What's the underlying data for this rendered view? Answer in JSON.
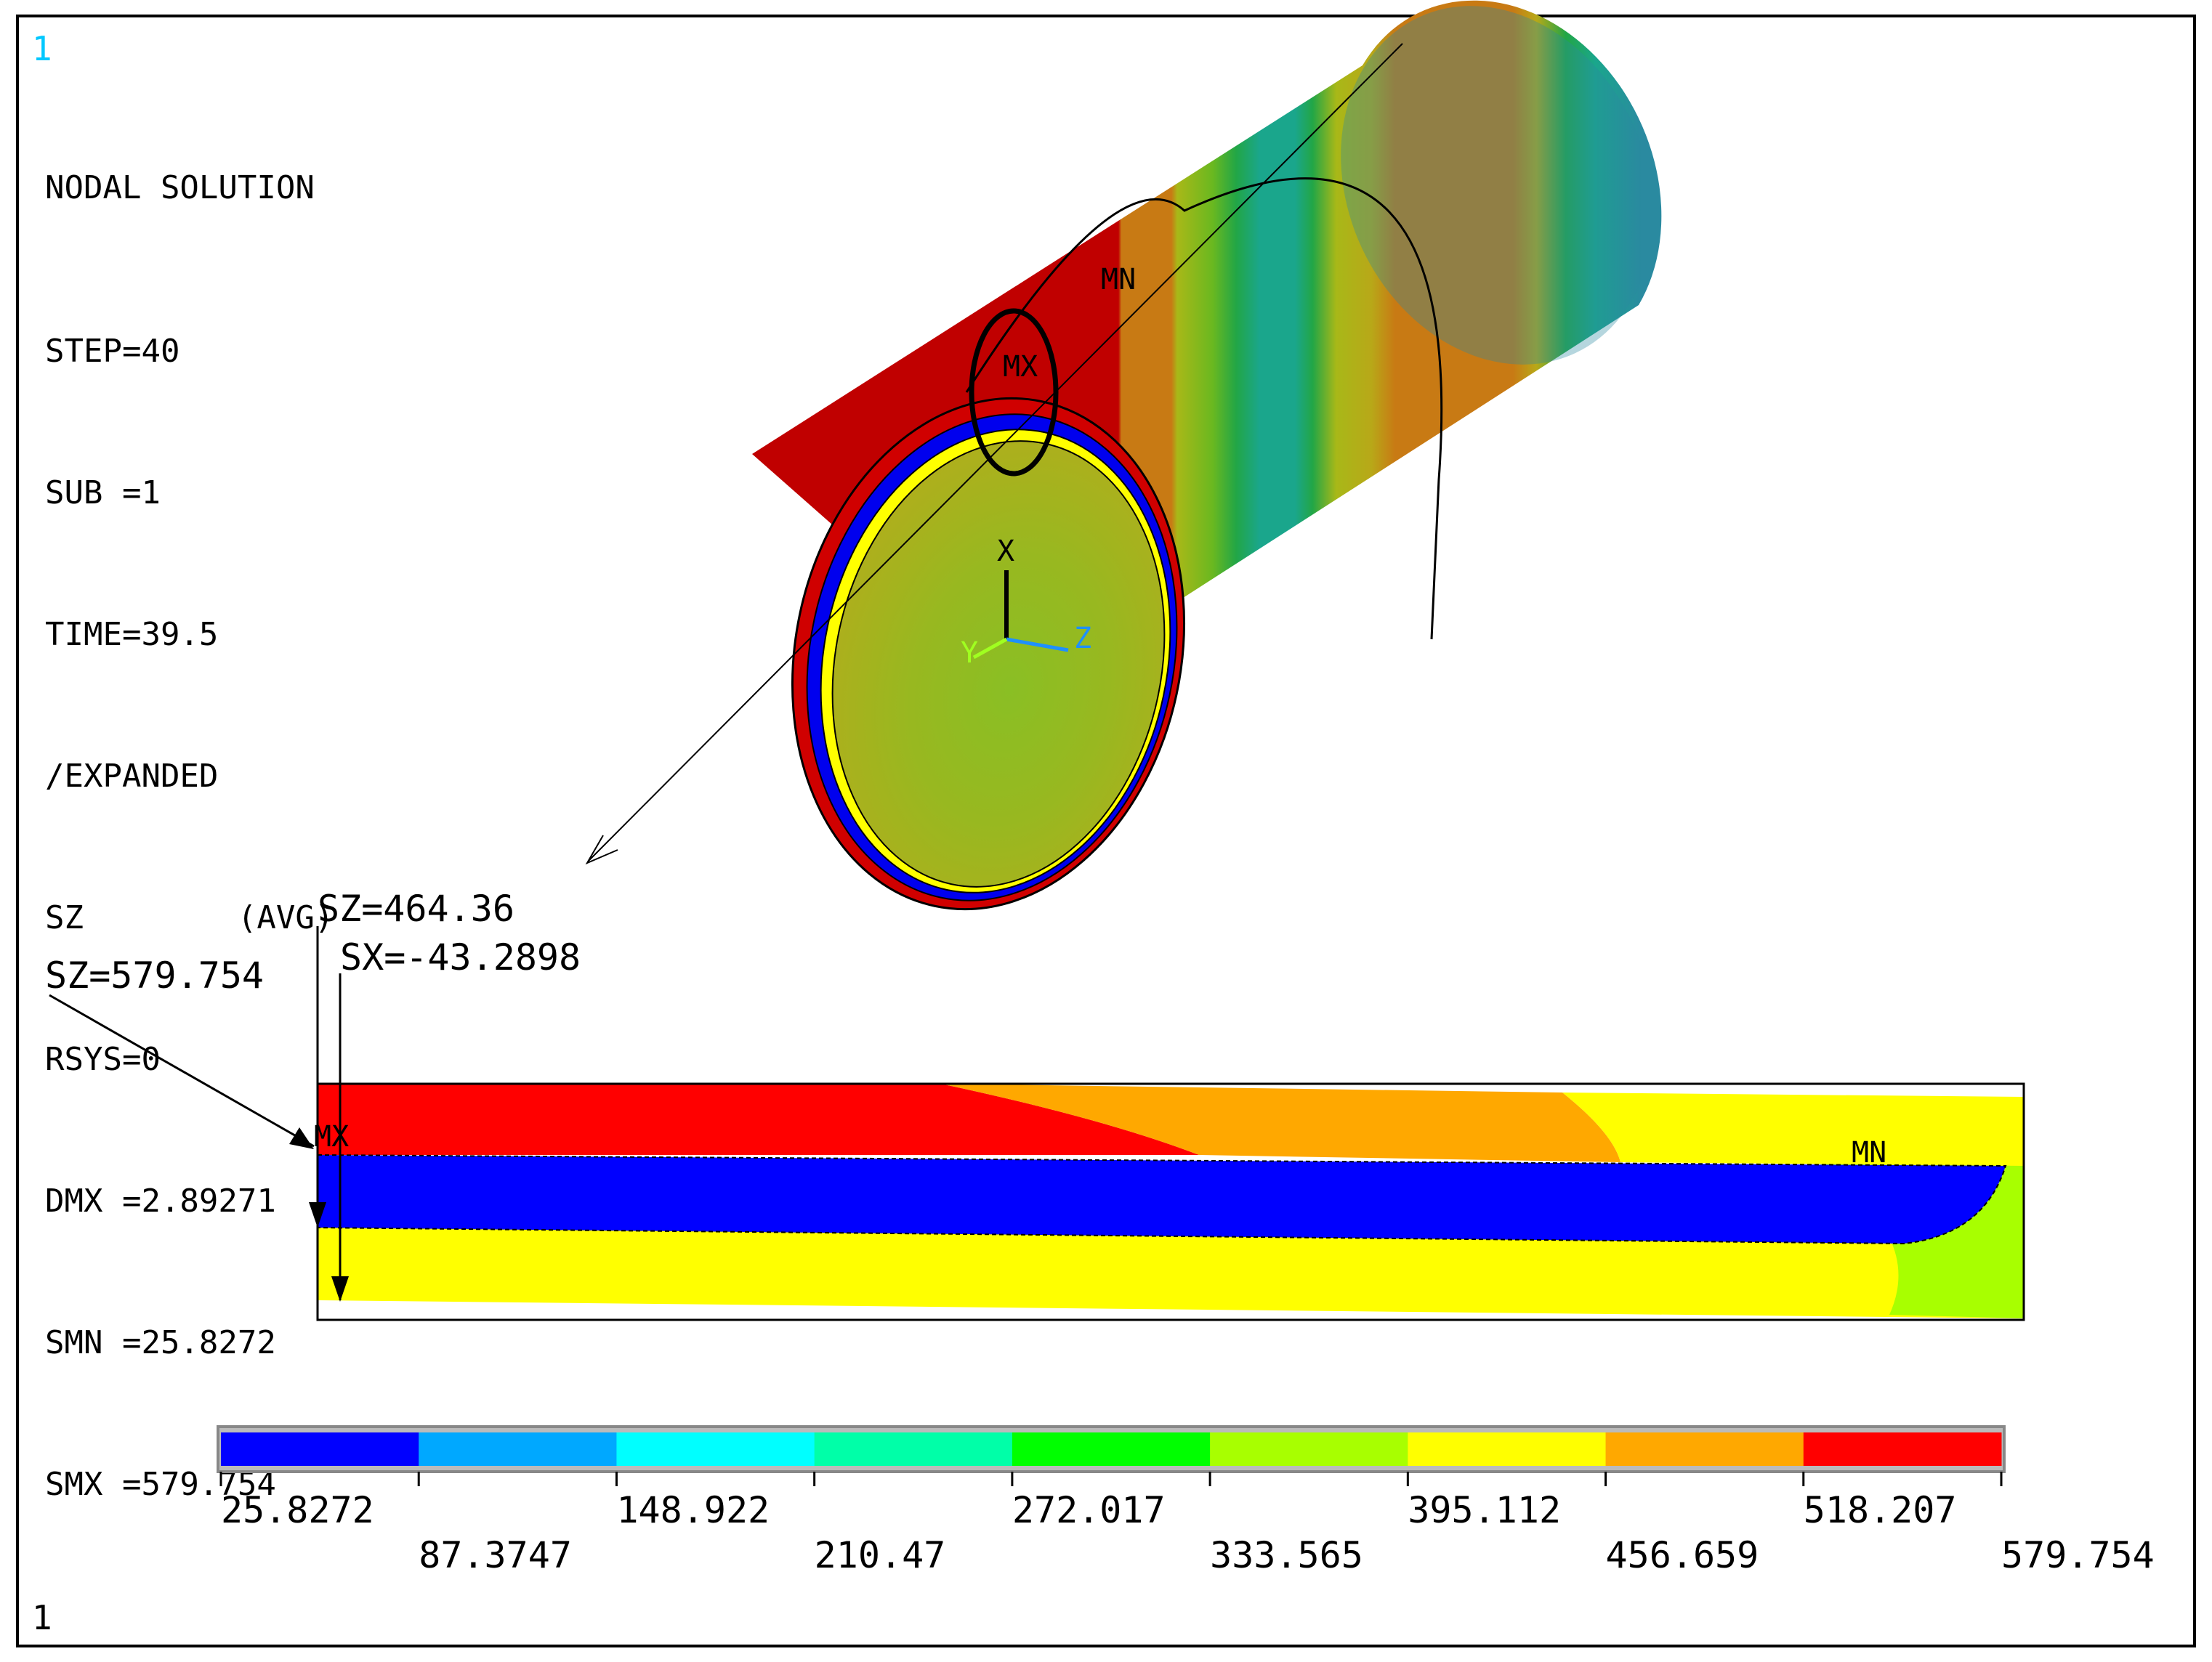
{
  "window_number_top": "1",
  "window_number_bottom": "1",
  "info": {
    "title": "NODAL SOLUTION",
    "step": "STEP=40",
    "sub": "SUB =1",
    "time": "TIME=39.5",
    "expanded": "/EXPANDED",
    "sz": "SZ        (AVG)",
    "rsys": "RSYS=0",
    "dmx": "DMX =2.89271",
    "smn": "SMN =25.8272",
    "smx": "SMX =579.754"
  },
  "model": {
    "mn_label": "MN",
    "mx_label": "MX",
    "axis_x": "X",
    "axis_y": "Y",
    "axis_z": "Z"
  },
  "section": {
    "callout_sz_outer": "SZ=579.754",
    "callout_sz_mid": "SZ=464.36",
    "callout_sx": "SX=-43.2898",
    "mx_label": "MX",
    "mn_label": "MN"
  },
  "legend": {
    "colors": [
      "#0000ff",
      "#00a8ff",
      "#00ffff",
      "#00ffa8",
      "#00ff00",
      "#a8ff00",
      "#ffff00",
      "#ffa800",
      "#ff0000"
    ],
    "upper_values": [
      "25.8272",
      "148.922",
      "272.017",
      "395.112",
      "518.207"
    ],
    "lower_values": [
      "87.3747",
      "210.47",
      "333.565",
      "456.659",
      "579.754"
    ]
  }
}
